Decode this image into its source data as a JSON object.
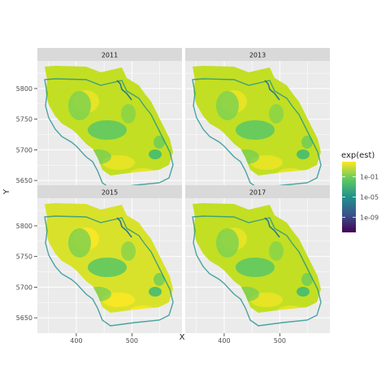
{
  "chart_data": {
    "type": "heatmap",
    "title": "",
    "xlabel": "X",
    "ylabel": "Y",
    "xlim": [
      330,
      590
    ],
    "ylim": [
      5625,
      5845
    ],
    "x_ticks": [
      400,
      500
    ],
    "y_ticks": [
      5650,
      5700,
      5750,
      5800
    ],
    "grid": true,
    "facets": [
      "2011",
      "2013",
      "2015",
      "2017"
    ],
    "legend": {
      "title": "exp(est)",
      "position": "right",
      "scale": "log10",
      "range": [
        1e-12,
        100
      ],
      "breaks": [
        {
          "value": 0.1,
          "label": "1e-01"
        },
        {
          "value": 1e-05,
          "label": "1e-05"
        },
        {
          "value": 1e-09,
          "label": "1e-09"
        }
      ],
      "colors": [
        "#440154",
        "#3b528b",
        "#21918c",
        "#5ec962",
        "#fde725"
      ]
    },
    "panel_background": "#ebebeb",
    "strip_background": "#d9d9d9"
  }
}
